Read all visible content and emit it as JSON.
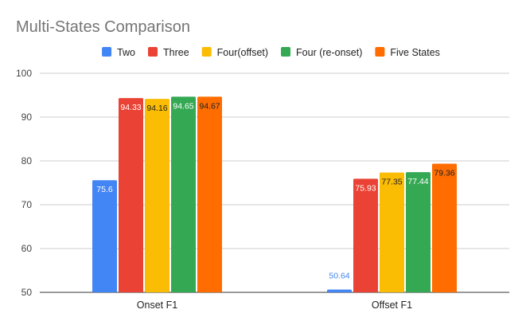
{
  "chart_data": {
    "type": "bar",
    "title": "Multi-States Comparison",
    "xlabel": "",
    "ylabel": "",
    "categories": [
      "Onset F1",
      "Offset F1"
    ],
    "series": [
      {
        "name": "Two",
        "color": "#4285f4",
        "values": [
          75.6,
          50.64
        ],
        "labels": [
          "75.6",
          "50.64"
        ]
      },
      {
        "name": "Three",
        "color": "#ea4335",
        "values": [
          94.33,
          75.93
        ],
        "labels": [
          "94.33",
          "75.93"
        ]
      },
      {
        "name": "Four(offset)",
        "color": "#fbbc04",
        "values": [
          94.16,
          77.35
        ],
        "labels": [
          "94.16",
          "77.35"
        ]
      },
      {
        "name": "Four (re-onset)",
        "color": "#34a853",
        "values": [
          94.65,
          77.44
        ],
        "labels": [
          "94.65",
          "77.44"
        ]
      },
      {
        "name": "Five States",
        "color": "#ff6d01",
        "values": [
          94.67,
          79.36
        ],
        "labels": [
          "94.67",
          "79.36"
        ]
      }
    ],
    "ylim": [
      50,
      100
    ],
    "yticks": [
      50,
      60,
      70,
      80,
      90,
      100
    ],
    "grid": true,
    "legend": "top"
  }
}
